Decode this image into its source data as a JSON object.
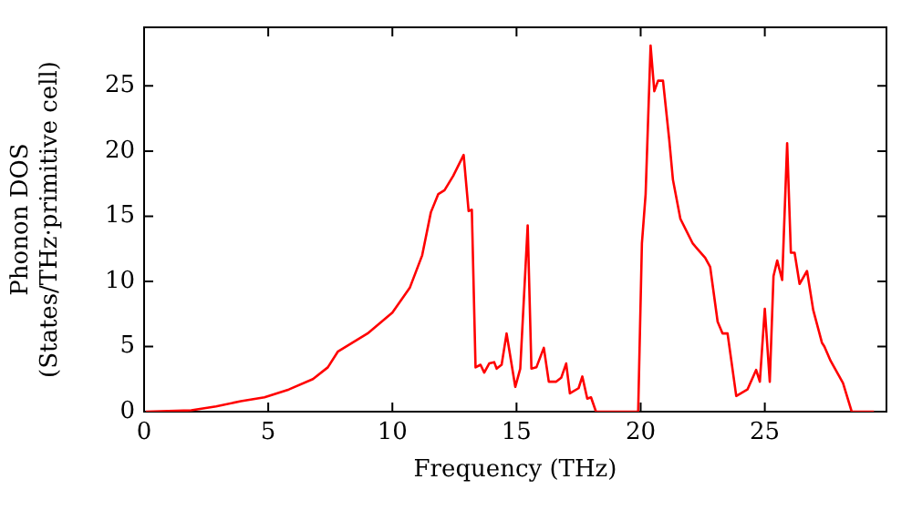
{
  "chart_data": {
    "type": "line",
    "xlabel": "Frequency (THz)",
    "ylabel": "Phonon DOS\n(States/THz·primitive cell)",
    "xlim": [
      0,
      29.9
    ],
    "ylim": [
      0,
      29.5
    ],
    "xticks": [
      0,
      5,
      10,
      15,
      20,
      25
    ],
    "yticks": [
      0,
      5,
      10,
      15,
      20,
      25
    ],
    "grid": false,
    "legend": false,
    "marker": "none",
    "line_style": "solid",
    "series": [
      {
        "color": "#ff0000",
        "x": [
          0.07,
          1.9,
          2.9,
          3.9,
          4.85,
          5.83,
          6.8,
          7.4,
          7.8,
          9.0,
          10.0,
          10.7,
          11.2,
          11.55,
          11.85,
          12.1,
          12.45,
          12.87,
          13.07,
          13.2,
          13.35,
          13.55,
          13.7,
          13.9,
          14.1,
          14.2,
          14.4,
          14.6,
          14.95,
          15.15,
          15.45,
          15.6,
          15.8,
          16.1,
          16.3,
          16.6,
          16.8,
          17.0,
          17.15,
          17.5,
          17.65,
          17.85,
          18.0,
          18.2,
          19.9,
          20.05,
          20.2,
          20.4,
          20.55,
          20.7,
          20.9,
          21.15,
          21.3,
          21.6,
          22.1,
          22.6,
          22.8,
          23.1,
          23.3,
          23.5,
          23.85,
          24.3,
          24.65,
          24.8,
          25.0,
          25.2,
          25.35,
          25.5,
          25.7,
          25.9,
          26.05,
          26.2,
          26.4,
          26.7,
          26.95,
          27.3,
          27.4,
          27.65,
          28.15,
          28.5,
          29.4
        ],
        "values": [
          0,
          0.1,
          0.4,
          0.8,
          1.1,
          1.7,
          2.5,
          3.4,
          4.6,
          6.0,
          7.6,
          9.5,
          12.0,
          15.3,
          16.7,
          17.0,
          18.1,
          19.7,
          15.4,
          15.5,
          3.4,
          3.6,
          3.0,
          3.7,
          3.8,
          3.3,
          3.6,
          6.0,
          1.9,
          3.3,
          14.3,
          3.3,
          3.4,
          4.9,
          2.3,
          2.3,
          2.6,
          3.7,
          1.4,
          1.8,
          2.7,
          1.0,
          1.1,
          0,
          0,
          12.9,
          16.7,
          28.1,
          24.6,
          25.4,
          25.4,
          20.9,
          17.8,
          14.8,
          12.9,
          11.8,
          11.1,
          6.9,
          6.0,
          6.0,
          1.2,
          1.7,
          3.2,
          2.3,
          7.9,
          2.3,
          10.4,
          11.6,
          10.1,
          20.6,
          12.2,
          12.2,
          9.8,
          10.8,
          7.8,
          5.3,
          5.0,
          3.9,
          2.2,
          0,
          0
        ]
      }
    ]
  }
}
